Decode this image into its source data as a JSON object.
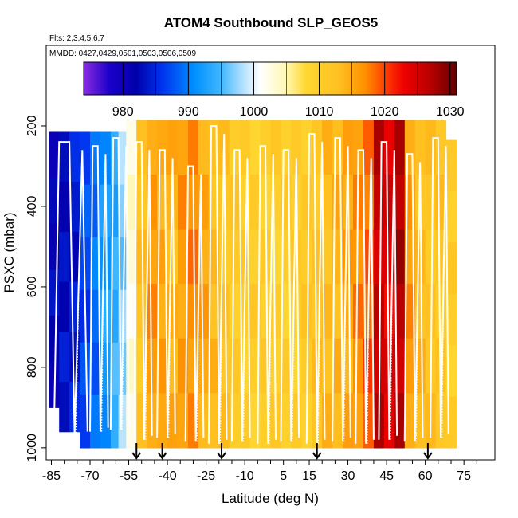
{
  "chart_data": {
    "type": "heatmap",
    "title": "ATOM4 Southbound SLP_GEOS5",
    "flights_note": "Flts: 2,3,4,5,6,7",
    "dates_note": "MMDD: 0427,0429,0501,0503,0506,0509",
    "xlabel": "Latitude (deg N)",
    "ylabel": "PSXC (mbar)",
    "xlim": [
      -87,
      87
    ],
    "ylim": [
      1030,
      0
    ],
    "x_ticks": [
      -85,
      -70,
      -55,
      -40,
      -25,
      -10,
      5,
      15,
      30,
      45,
      60,
      75
    ],
    "x_tick_labels": [
      "-85",
      "-70",
      "-55",
      "-40",
      "-25",
      "-10",
      "5",
      "15",
      "30",
      "45",
      "60",
      "75"
    ],
    "x_minor_ticks": [
      -80,
      -75,
      -65,
      -60,
      -50,
      -45,
      -35,
      -30,
      -20,
      -15,
      -5,
      0,
      10,
      20,
      25,
      35,
      40,
      50,
      55,
      65,
      70,
      80
    ],
    "y_ticks": [
      200,
      400,
      600,
      800,
      1000
    ],
    "y_tick_labels": [
      "200",
      "400",
      "600",
      "800",
      "1000"
    ],
    "colorbar": {
      "min": 974,
      "max": 1031,
      "ticks": [
        980,
        990,
        1000,
        1010,
        1020,
        1030
      ],
      "tick_labels": [
        "980",
        "990",
        "1000",
        "1010",
        "1020",
        "1030"
      ],
      "stops": [
        {
          "v": 974,
          "color": "#8a2be2"
        },
        {
          "v": 978,
          "color": "#1a00c8"
        },
        {
          "v": 982,
          "color": "#0000aa"
        },
        {
          "v": 986,
          "color": "#0033ee"
        },
        {
          "v": 991,
          "color": "#0090ff"
        },
        {
          "v": 995,
          "color": "#40b8ff"
        },
        {
          "v": 998,
          "color": "#a8dcff"
        },
        {
          "v": 1001,
          "color": "#ffffff"
        },
        {
          "v": 1005,
          "color": "#fff7b0"
        },
        {
          "v": 1008,
          "color": "#ffd730"
        },
        {
          "v": 1013,
          "color": "#ffc020"
        },
        {
          "v": 1017,
          "color": "#ff9000"
        },
        {
          "v": 1020,
          "color": "#ff4000"
        },
        {
          "v": 1023,
          "color": "#ee0000"
        },
        {
          "v": 1027,
          "color": "#b80000"
        },
        {
          "v": 1031,
          "color": "#600000"
        }
      ]
    },
    "slp_by_latitude": [
      {
        "lat": -84,
        "slp": 982
      },
      {
        "lat": -80,
        "slp": 983
      },
      {
        "lat": -76,
        "slp": 984
      },
      {
        "lat": -72,
        "slp": 987
      },
      {
        "lat": -68,
        "slp": 989
      },
      {
        "lat": -64,
        "slp": 992
      },
      {
        "lat": -60,
        "slp": 994
      },
      {
        "lat": -57,
        "slp": 997
      },
      {
        "lat": -54,
        "slp": 1003
      },
      {
        "lat": -50,
        "slp": 1012
      },
      {
        "lat": -46,
        "slp": 1016
      },
      {
        "lat": -42,
        "slp": 1015
      },
      {
        "lat": -38,
        "slp": 1014
      },
      {
        "lat": -34,
        "slp": 1016
      },
      {
        "lat": -30,
        "slp": 1017
      },
      {
        "lat": -26,
        "slp": 1015
      },
      {
        "lat": -22,
        "slp": 1013
      },
      {
        "lat": -18,
        "slp": 1012
      },
      {
        "lat": -14,
        "slp": 1011
      },
      {
        "lat": -10,
        "slp": 1010
      },
      {
        "lat": -6,
        "slp": 1010
      },
      {
        "lat": -2,
        "slp": 1010
      },
      {
        "lat": 2,
        "slp": 1010
      },
      {
        "lat": 6,
        "slp": 1010
      },
      {
        "lat": 10,
        "slp": 1010
      },
      {
        "lat": 14,
        "slp": 1011
      },
      {
        "lat": 18,
        "slp": 1012
      },
      {
        "lat": 22,
        "slp": 1013
      },
      {
        "lat": 26,
        "slp": 1014
      },
      {
        "lat": 30,
        "slp": 1015
      },
      {
        "lat": 34,
        "slp": 1017
      },
      {
        "lat": 38,
        "slp": 1019
      },
      {
        "lat": 42,
        "slp": 1026
      },
      {
        "lat": 46,
        "slp": 1024
      },
      {
        "lat": 50,
        "slp": 1027
      },
      {
        "lat": 54,
        "slp": 1016
      },
      {
        "lat": 58,
        "slp": 1013
      },
      {
        "lat": 62,
        "slp": 1012
      },
      {
        "lat": 66,
        "slp": 1012
      },
      {
        "lat": 70,
        "slp": 1010
      }
    ],
    "arrows_lat": [
      -52,
      -42,
      -19,
      18,
      61
    ],
    "flight_profiles": [
      {
        "lat": [
          -84,
          -82,
          -78,
          -76,
          -73,
          -71
        ],
        "top": 240,
        "bottom": 970
      },
      {
        "lat": [
          -70,
          -69,
          -67,
          -66,
          -64,
          -63
        ],
        "top": 250,
        "bottom": 960
      },
      {
        "lat": [
          -62,
          -61,
          -59,
          -58,
          -56,
          -55
        ],
        "top": 230,
        "bottom": 955
      },
      {
        "lat": [
          -53,
          -52,
          -50,
          -49,
          -47,
          -46
        ],
        "top": 240,
        "bottom": 980
      },
      {
        "lat": [
          -44,
          -43,
          -41,
          -40,
          -38,
          -37
        ],
        "top": 260,
        "bottom": 975
      },
      {
        "lat": [
          -33,
          -32,
          -30,
          -29,
          -27,
          -26
        ],
        "top": 300,
        "bottom": 985
      },
      {
        "lat": [
          -24,
          -23,
          -21,
          -20,
          -18,
          -17
        ],
        "top": 200,
        "bottom": 990
      },
      {
        "lat": [
          -15,
          -14,
          -12,
          -11,
          -9,
          -8
        ],
        "top": 260,
        "bottom": 985
      },
      {
        "lat": [
          -5,
          -4,
          -2,
          -1,
          1,
          2
        ],
        "top": 250,
        "bottom": 990
      },
      {
        "lat": [
          4,
          5,
          7,
          8,
          10,
          11
        ],
        "top": 260,
        "bottom": 985
      },
      {
        "lat": [
          14,
          15,
          17,
          18,
          20,
          21
        ],
        "top": 220,
        "bottom": 990
      },
      {
        "lat": [
          24,
          25,
          27,
          28,
          30,
          31
        ],
        "top": 230,
        "bottom": 985
      },
      {
        "lat": [
          33,
          34,
          36,
          37,
          39,
          40
        ],
        "top": 260,
        "bottom": 990
      },
      {
        "lat": [
          42,
          43,
          45,
          46,
          48,
          49
        ],
        "top": 240,
        "bottom": 980
      },
      {
        "lat": [
          52,
          53,
          55,
          56,
          58,
          59
        ],
        "top": 270,
        "bottom": 985
      },
      {
        "lat": [
          62,
          63,
          65,
          66,
          68,
          69
        ],
        "top": 230,
        "bottom": 975
      }
    ]
  }
}
